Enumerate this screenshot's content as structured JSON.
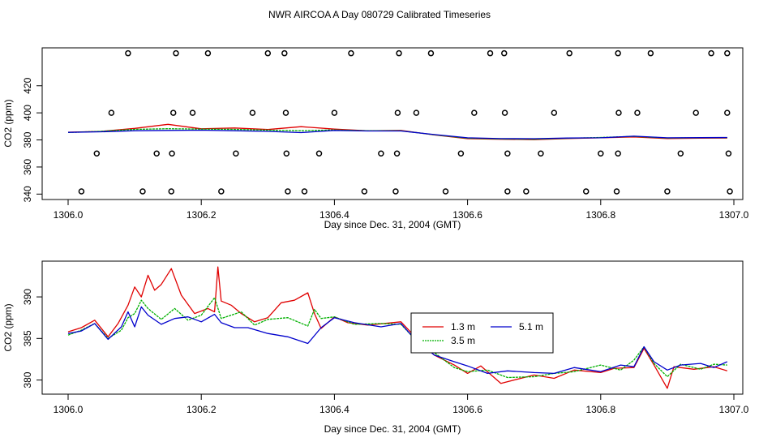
{
  "title": "NWR AIRCOA A  Day 080729  Calibrated Timeseries",
  "colors": {
    "s1": "#e00000",
    "s2": "#00b000",
    "s3": "#0000cc",
    "axis": "#000000"
  },
  "chart_data": [
    {
      "type": "line",
      "panel": "top",
      "xlabel": "Day since Dec. 31, 2004 (GMT)",
      "ylabel": "CO2 (ppm)",
      "xlim": [
        1306.0,
        1307.0
      ],
      "ylim": [
        336,
        448
      ],
      "xticks": [
        1306.0,
        1306.2,
        1306.4,
        1306.6,
        1306.8,
        1307.0
      ],
      "xtick_labels": [
        "1306.0",
        "1306.2",
        "1306.4",
        "1306.6",
        "1306.8",
        "1307.0"
      ],
      "yticks": [
        340,
        360,
        380,
        400,
        420
      ],
      "ytick_labels": [
        "340",
        "360",
        "380",
        "400",
        "420"
      ],
      "series": [
        {
          "name": "1.3 m",
          "color": "#e00000",
          "x": [
            1306.0,
            1306.05,
            1306.1,
            1306.15,
            1306.2,
            1306.25,
            1306.3,
            1306.35,
            1306.4,
            1306.45,
            1306.5,
            1306.55,
            1306.6,
            1306.65,
            1306.7,
            1306.75,
            1306.8,
            1306.85,
            1306.9,
            1306.95,
            1306.99
          ],
          "values": [
            385.7,
            386.3,
            388.5,
            391.5,
            388.2,
            388.8,
            387.7,
            389.8,
            388.0,
            386.7,
            387.0,
            383.7,
            380.9,
            380.5,
            380.2,
            381.0,
            381.6,
            382.2,
            381.0,
            381.3,
            381.4
          ]
        },
        {
          "name": "3.5 m",
          "color": "#00b000",
          "x": [
            1306.0,
            1306.05,
            1306.1,
            1306.15,
            1306.2,
            1306.25,
            1306.3,
            1306.35,
            1306.4,
            1306.45,
            1306.5,
            1306.55,
            1306.6,
            1306.65,
            1306.7,
            1306.75,
            1306.8,
            1306.85,
            1306.9,
            1306.95,
            1306.99
          ],
          "values": [
            385.5,
            386.4,
            387.8,
            388.3,
            388.0,
            387.8,
            387.2,
            386.8,
            387.4,
            386.8,
            386.8,
            383.8,
            381.3,
            380.7,
            380.5,
            381.2,
            381.8,
            382.6,
            381.4,
            381.6,
            381.7
          ]
        },
        {
          "name": "5.1 m",
          "color": "#0000cc",
          "x": [
            1306.0,
            1306.05,
            1306.1,
            1306.15,
            1306.2,
            1306.25,
            1306.3,
            1306.35,
            1306.4,
            1306.45,
            1306.5,
            1306.55,
            1306.6,
            1306.65,
            1306.7,
            1306.75,
            1306.8,
            1306.85,
            1306.9,
            1306.95,
            1306.99
          ],
          "values": [
            385.6,
            386.0,
            386.8,
            387.0,
            387.2,
            386.8,
            386.3,
            385.4,
            387.0,
            386.6,
            386.6,
            384.0,
            381.6,
            381.0,
            380.9,
            381.4,
            381.6,
            382.8,
            381.6,
            381.7,
            381.8
          ]
        }
      ],
      "markers": [
        {
          "x": 1306.09,
          "y": 444
        },
        {
          "x": 1306.162,
          "y": 444
        },
        {
          "x": 1306.21,
          "y": 444
        },
        {
          "x": 1306.3,
          "y": 444
        },
        {
          "x": 1306.325,
          "y": 444
        },
        {
          "x": 1306.425,
          "y": 444
        },
        {
          "x": 1306.497,
          "y": 444
        },
        {
          "x": 1306.545,
          "y": 444
        },
        {
          "x": 1306.634,
          "y": 444
        },
        {
          "x": 1306.655,
          "y": 444
        },
        {
          "x": 1306.753,
          "y": 444
        },
        {
          "x": 1306.826,
          "y": 444
        },
        {
          "x": 1306.875,
          "y": 444
        },
        {
          "x": 1306.966,
          "y": 444
        },
        {
          "x": 1306.99,
          "y": 444
        },
        {
          "x": 1306.065,
          "y": 400
        },
        {
          "x": 1306.158,
          "y": 400
        },
        {
          "x": 1306.187,
          "y": 400
        },
        {
          "x": 1306.277,
          "y": 400
        },
        {
          "x": 1306.327,
          "y": 400
        },
        {
          "x": 1306.4,
          "y": 400
        },
        {
          "x": 1306.495,
          "y": 400
        },
        {
          "x": 1306.523,
          "y": 400
        },
        {
          "x": 1306.61,
          "y": 400
        },
        {
          "x": 1306.656,
          "y": 400
        },
        {
          "x": 1306.73,
          "y": 400
        },
        {
          "x": 1306.827,
          "y": 400
        },
        {
          "x": 1306.855,
          "y": 400
        },
        {
          "x": 1306.943,
          "y": 400
        },
        {
          "x": 1306.99,
          "y": 400
        },
        {
          "x": 1306.043,
          "y": 370
        },
        {
          "x": 1306.133,
          "y": 370
        },
        {
          "x": 1306.156,
          "y": 370
        },
        {
          "x": 1306.252,
          "y": 370
        },
        {
          "x": 1306.328,
          "y": 370
        },
        {
          "x": 1306.377,
          "y": 370
        },
        {
          "x": 1306.47,
          "y": 370
        },
        {
          "x": 1306.494,
          "y": 370
        },
        {
          "x": 1306.59,
          "y": 370
        },
        {
          "x": 1306.66,
          "y": 370
        },
        {
          "x": 1306.71,
          "y": 370
        },
        {
          "x": 1306.8,
          "y": 370
        },
        {
          "x": 1306.826,
          "y": 370
        },
        {
          "x": 1306.92,
          "y": 370
        },
        {
          "x": 1306.992,
          "y": 370
        },
        {
          "x": 1306.02,
          "y": 342
        },
        {
          "x": 1306.112,
          "y": 342
        },
        {
          "x": 1306.155,
          "y": 342
        },
        {
          "x": 1306.23,
          "y": 342
        },
        {
          "x": 1306.33,
          "y": 342
        },
        {
          "x": 1306.355,
          "y": 342
        },
        {
          "x": 1306.445,
          "y": 342
        },
        {
          "x": 1306.492,
          "y": 342
        },
        {
          "x": 1306.567,
          "y": 342
        },
        {
          "x": 1306.66,
          "y": 342
        },
        {
          "x": 1306.688,
          "y": 342
        },
        {
          "x": 1306.778,
          "y": 342
        },
        {
          "x": 1306.824,
          "y": 342
        },
        {
          "x": 1306.9,
          "y": 342
        },
        {
          "x": 1306.994,
          "y": 342
        }
      ]
    },
    {
      "type": "line",
      "panel": "bottom",
      "xlabel": "Day since Dec. 31, 2004 (GMT)",
      "ylabel": "CO2 (ppm)",
      "xlim": [
        1306.0,
        1307.0
      ],
      "ylim": [
        378.3,
        394.3
      ],
      "xticks": [
        1306.0,
        1306.2,
        1306.4,
        1306.6,
        1306.8,
        1307.0
      ],
      "xtick_labels": [
        "1306.0",
        "1306.2",
        "1306.4",
        "1306.6",
        "1306.8",
        "1307.0"
      ],
      "yticks": [
        380,
        385,
        390
      ],
      "ytick_labels": [
        "380",
        "385",
        "390"
      ],
      "legend": {
        "position": "center-right",
        "entries": [
          "1.3 m",
          "3.5 m",
          "5.1 m"
        ]
      },
      "series": [
        {
          "name": "1.3 m",
          "color": "#e00000",
          "x": [
            1306.0,
            1306.02,
            1306.04,
            1306.06,
            1306.075,
            1306.09,
            1306.1,
            1306.11,
            1306.12,
            1306.13,
            1306.14,
            1306.155,
            1306.17,
            1306.19,
            1306.21,
            1306.22,
            1306.225,
            1306.23,
            1306.245,
            1306.26,
            1306.28,
            1306.3,
            1306.32,
            1306.34,
            1306.36,
            1306.37,
            1306.38,
            1306.4,
            1306.42,
            1306.45,
            1306.5,
            1306.52,
            1306.55,
            1306.58,
            1306.6,
            1306.62,
            1306.65,
            1306.68,
            1306.7,
            1306.73,
            1306.76,
            1306.8,
            1306.82,
            1306.85,
            1306.865,
            1306.88,
            1306.9,
            1306.91,
            1306.94,
            1306.97,
            1306.99
          ],
          "values": [
            385.8,
            386.3,
            387.2,
            385.2,
            386.8,
            389.0,
            391.2,
            390.0,
            392.6,
            390.8,
            391.5,
            393.4,
            390.2,
            388.0,
            388.6,
            388.2,
            393.6,
            389.5,
            389.0,
            388.0,
            387.0,
            387.5,
            389.3,
            389.6,
            390.5,
            388.0,
            386.2,
            387.6,
            386.9,
            386.6,
            387.0,
            385.3,
            383.0,
            381.8,
            380.8,
            381.7,
            379.6,
            380.2,
            380.6,
            380.2,
            381.2,
            380.9,
            381.4,
            381.5,
            383.8,
            381.8,
            379.0,
            381.6,
            381.3,
            381.6,
            381.1
          ]
        },
        {
          "name": "3.5 m",
          "color": "#00b000",
          "x": [
            1306.0,
            1306.02,
            1306.04,
            1306.06,
            1306.08,
            1306.09,
            1306.1,
            1306.11,
            1306.12,
            1306.14,
            1306.16,
            1306.18,
            1306.2,
            1306.22,
            1306.23,
            1306.26,
            1306.28,
            1306.3,
            1306.33,
            1306.36,
            1306.37,
            1306.38,
            1306.4,
            1306.43,
            1306.47,
            1306.5,
            1306.52,
            1306.55,
            1306.58,
            1306.6,
            1306.63,
            1306.66,
            1306.7,
            1306.73,
            1306.76,
            1306.8,
            1306.83,
            1306.85,
            1306.865,
            1306.88,
            1306.9,
            1306.92,
            1306.95,
            1306.97,
            1306.99
          ],
          "values": [
            385.4,
            386.0,
            386.8,
            385.0,
            386.0,
            387.5,
            388.0,
            389.6,
            388.6,
            387.3,
            388.6,
            387.2,
            387.8,
            389.9,
            387.4,
            388.2,
            386.6,
            387.3,
            387.5,
            386.5,
            388.5,
            387.4,
            387.6,
            386.7,
            386.8,
            386.7,
            385.0,
            383.3,
            381.5,
            381.0,
            381.2,
            380.3,
            380.4,
            380.8,
            381.0,
            381.8,
            381.2,
            382.4,
            384.0,
            382.0,
            380.4,
            381.9,
            381.3,
            381.9,
            381.8
          ]
        },
        {
          "name": "5.1 m",
          "color": "#0000cc",
          "x": [
            1306.0,
            1306.02,
            1306.04,
            1306.06,
            1306.08,
            1306.09,
            1306.1,
            1306.11,
            1306.12,
            1306.14,
            1306.16,
            1306.18,
            1306.2,
            1306.22,
            1306.23,
            1306.25,
            1306.27,
            1306.3,
            1306.33,
            1306.36,
            1306.38,
            1306.4,
            1306.43,
            1306.47,
            1306.5,
            1306.52,
            1306.55,
            1306.58,
            1306.6,
            1306.63,
            1306.66,
            1306.7,
            1306.73,
            1306.76,
            1306.8,
            1306.83,
            1306.85,
            1306.865,
            1306.88,
            1306.9,
            1306.92,
            1306.95,
            1306.97,
            1306.99
          ],
          "values": [
            385.6,
            385.9,
            386.8,
            384.9,
            386.4,
            388.2,
            386.4,
            388.8,
            387.8,
            386.7,
            387.4,
            387.6,
            387.0,
            387.9,
            386.9,
            386.3,
            386.3,
            385.6,
            385.2,
            384.4,
            386.3,
            387.5,
            386.9,
            386.4,
            386.8,
            385.0,
            383.0,
            382.2,
            381.7,
            380.8,
            381.1,
            380.9,
            380.8,
            381.5,
            381.0,
            381.8,
            381.6,
            384.0,
            382.2,
            381.2,
            381.8,
            382.0,
            381.5,
            382.2
          ]
        }
      ]
    }
  ]
}
